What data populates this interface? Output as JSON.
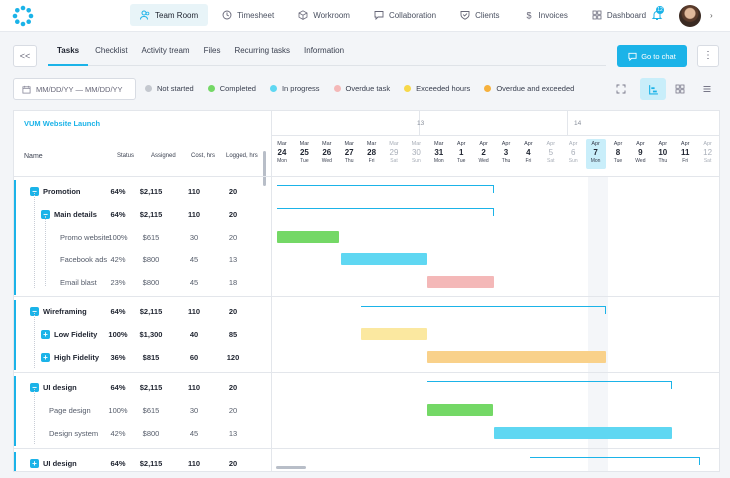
{
  "nav": {
    "items": [
      {
        "label": "Team Room",
        "icon": "users-icon",
        "active": true
      },
      {
        "label": "Timesheet",
        "icon": "clock-icon"
      },
      {
        "label": "Workroom",
        "icon": "cube-icon"
      },
      {
        "label": "Collaboration",
        "icon": "chat-icon"
      },
      {
        "label": "Clients",
        "icon": "shield-icon"
      },
      {
        "label": "Invoices",
        "icon": "dollar-icon"
      },
      {
        "label": "Dashboard",
        "icon": "grid-icon"
      }
    ],
    "notification_count": "12"
  },
  "tabs": {
    "collapse_label": "<<",
    "items": [
      "Tasks",
      "Checklist",
      "Activity tream",
      "Files",
      "Recurring tasks",
      "Information"
    ],
    "chat_button": "Go to chat",
    "more_label": "⋮"
  },
  "filters": {
    "date_placeholder": "MM/DD/YY — MM/DD/YY",
    "legend": [
      {
        "label": "Not started",
        "color": "#c4c8cf"
      },
      {
        "label": "Completed",
        "color": "#74d866"
      },
      {
        "label": "In progress",
        "color": "#5fd7f2"
      },
      {
        "label": "Overdue task",
        "color": "#f4b8b8"
      },
      {
        "label": "Exceeded hours",
        "color": "#f7d84a"
      },
      {
        "label": "Overdue and exceeded",
        "color": "#f6b13d"
      }
    ]
  },
  "project": {
    "title": "VUM Website Launch",
    "columns": {
      "name": "Name",
      "status": "Status",
      "assigned": "Assigned",
      "cost": "Cost, hrs",
      "logged": "Logged, hrs"
    },
    "rows": [
      {
        "name": "Promotion",
        "toggle": "−",
        "status": "64%",
        "assigned": "$2,115",
        "cost": "110",
        "logged": "20"
      },
      {
        "name": "Main details",
        "toggle": "−",
        "status": "64%",
        "assigned": "$2,115",
        "cost": "110",
        "logged": "20"
      },
      {
        "name": "Promo website",
        "status": "100%",
        "assigned": "$615",
        "cost": "30",
        "logged": "20"
      },
      {
        "name": "Facebook ads",
        "status": "42%",
        "assigned": "$800",
        "cost": "45",
        "logged": "13"
      },
      {
        "name": "Email blast",
        "status": "23%",
        "assigned": "$800",
        "cost": "45",
        "logged": "18"
      },
      {
        "name": "Wireframing",
        "toggle": "−",
        "status": "64%",
        "assigned": "$2,115",
        "cost": "110",
        "logged": "20"
      },
      {
        "name": "Low Fidelity",
        "toggle": "+",
        "status": "100%",
        "assigned": "$1,300",
        "cost": "40",
        "logged": "85"
      },
      {
        "name": "High Fidelity",
        "toggle": "+",
        "status": "36%",
        "assigned": "$815",
        "cost": "60",
        "logged": "120"
      },
      {
        "name": "UI design",
        "toggle": "−",
        "status": "64%",
        "assigned": "$2,115",
        "cost": "110",
        "logged": "20"
      },
      {
        "name": "Page design",
        "status": "100%",
        "assigned": "$615",
        "cost": "30",
        "logged": "20"
      },
      {
        "name": "Design system",
        "status": "42%",
        "assigned": "$800",
        "cost": "45",
        "logged": "13"
      },
      {
        "name": "UI design",
        "toggle": "+",
        "status": "64%",
        "assigned": "$2,115",
        "cost": "110",
        "logged": "20"
      }
    ]
  },
  "timeline": {
    "weeks": [
      "13",
      "14"
    ],
    "days": [
      {
        "m": "Mar",
        "d": "24",
        "w": "Mon"
      },
      {
        "m": "Mar",
        "d": "25",
        "w": "Tue"
      },
      {
        "m": "Mar",
        "d": "26",
        "w": "Wed"
      },
      {
        "m": "Mar",
        "d": "27",
        "w": "Thu"
      },
      {
        "m": "Mar",
        "d": "28",
        "w": "Fri"
      },
      {
        "m": "Mar",
        "d": "29",
        "w": "Sat",
        "weekend": true
      },
      {
        "m": "Mar",
        "d": "30",
        "w": "Sun",
        "weekend": true
      },
      {
        "m": "Mar",
        "d": "31",
        "w": "Mon"
      },
      {
        "m": "Apr",
        "d": "1",
        "w": "Tue"
      },
      {
        "m": "Apr",
        "d": "2",
        "w": "Wed"
      },
      {
        "m": "Apr",
        "d": "3",
        "w": "Thu"
      },
      {
        "m": "Apr",
        "d": "4",
        "w": "Fri"
      },
      {
        "m": "Apr",
        "d": "5",
        "w": "Sat",
        "weekend": true
      },
      {
        "m": "Apr",
        "d": "6",
        "w": "Sun",
        "weekend": true
      },
      {
        "m": "Apr",
        "d": "7",
        "w": "Mon",
        "today": true
      },
      {
        "m": "Apr",
        "d": "8",
        "w": "Tue"
      },
      {
        "m": "Apr",
        "d": "9",
        "w": "Wed"
      },
      {
        "m": "Apr",
        "d": "10",
        "w": "Thu"
      },
      {
        "m": "Apr",
        "d": "11",
        "w": "Fri"
      },
      {
        "m": "Apr",
        "d": "12",
        "w": "Sat",
        "weekend": true
      }
    ]
  },
  "colors": {
    "accent": "#1bb3e8",
    "completed": "#74d866",
    "in_progress": "#5fd7f2",
    "overdue": "#f4b8b8",
    "exceeded": "#fbe8a0",
    "overdue_exceeded": "#f9d18a"
  }
}
